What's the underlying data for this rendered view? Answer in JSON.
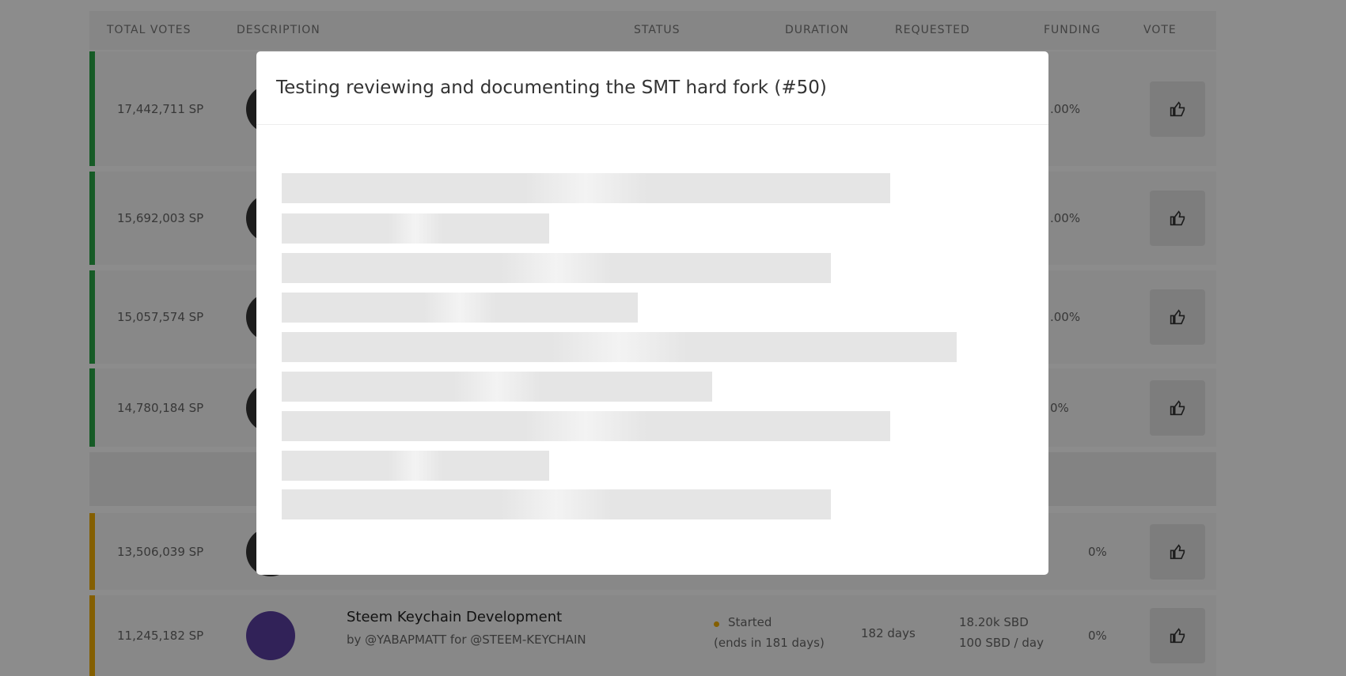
{
  "header": {
    "columns": [
      "TOTAL VOTES",
      "DESCRIPTION",
      "STATUS",
      "DURATION",
      "REQUESTED",
      "FUNDING",
      "VOTE"
    ]
  },
  "rows": [
    {
      "votes": "17,442,711 SP",
      "funding": ".00%"
    },
    {
      "votes": "15,692,003 SP",
      "funding": ".00%"
    },
    {
      "votes": "15,057,574 SP",
      "funding": ".00%"
    },
    {
      "votes": "14,780,184 SP",
      "funding": "0%"
    },
    {
      "votes": "13,506,039 SP",
      "funding": "0%"
    },
    {
      "votes": "11,245,182 SP",
      "title": "Steem Keychain Development",
      "byline": "by @YABAPMATT for @STEEM-KEYCHAIN",
      "status": "Started",
      "ends": "(ends in 181 days)",
      "duration": "182 days",
      "requested": "18.20k SBD",
      "per_day": "100 SBD / day",
      "funding": "0%"
    }
  ],
  "modal": {
    "title": "Testing reviewing and documenting the SMT hard fork (#50)"
  }
}
